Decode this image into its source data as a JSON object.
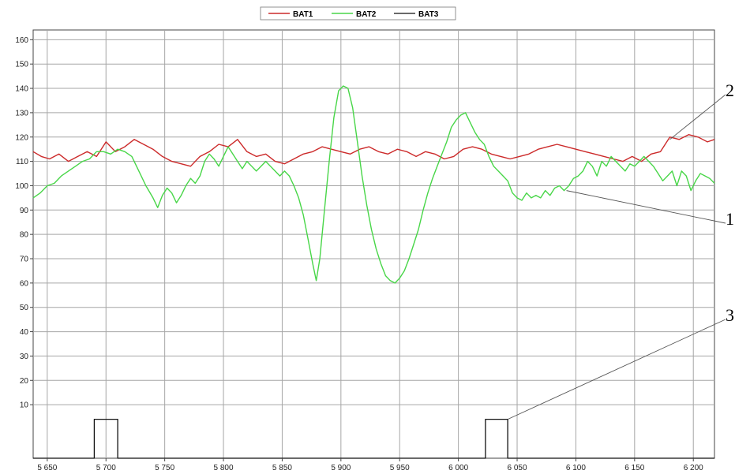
{
  "chart_data": {
    "type": "line",
    "title": "",
    "xlabel": "",
    "ylabel": "",
    "xlim": [
      5638,
      6218
    ],
    "ylim": [
      -12,
      164
    ],
    "grid": true,
    "legend": "top-center",
    "x_ticks": [
      5650,
      5700,
      5750,
      5800,
      5850,
      5900,
      5950,
      6000,
      6050,
      6100,
      6150,
      6200
    ],
    "x_tick_labels": [
      "5 650",
      "5 700",
      "5 750",
      "5 800",
      "5 850",
      "5 900",
      "5 950",
      "6 000",
      "6 050",
      "6 100",
      "6 150",
      "6 200"
    ],
    "y_ticks": [
      10,
      20,
      30,
      40,
      50,
      60,
      70,
      80,
      90,
      100,
      110,
      120,
      130,
      140,
      150,
      160
    ],
    "y_tick_labels": [
      "10",
      "20",
      "30",
      "40",
      "50",
      "60",
      "70",
      "80",
      "90",
      "100",
      "110",
      "120",
      "130",
      "140",
      "150",
      "160"
    ],
    "series": [
      {
        "name": "BAT1",
        "color": "#cc2a2a",
        "points": [
          [
            5638,
            114
          ],
          [
            5645,
            112
          ],
          [
            5652,
            111
          ],
          [
            5660,
            113
          ],
          [
            5668,
            110
          ],
          [
            5676,
            112
          ],
          [
            5684,
            114
          ],
          [
            5692,
            112
          ],
          [
            5700,
            118
          ],
          [
            5708,
            114
          ],
          [
            5716,
            116
          ],
          [
            5724,
            119
          ],
          [
            5732,
            117
          ],
          [
            5740,
            115
          ],
          [
            5748,
            112
          ],
          [
            5756,
            110
          ],
          [
            5764,
            109
          ],
          [
            5772,
            108
          ],
          [
            5780,
            112
          ],
          [
            5788,
            114
          ],
          [
            5796,
            117
          ],
          [
            5804,
            116
          ],
          [
            5812,
            119
          ],
          [
            5820,
            114
          ],
          [
            5828,
            112
          ],
          [
            5836,
            113
          ],
          [
            5844,
            110
          ],
          [
            5852,
            109
          ],
          [
            5860,
            111
          ],
          [
            5868,
            113
          ],
          [
            5876,
            114
          ],
          [
            5884,
            116
          ],
          [
            5892,
            115
          ],
          [
            5900,
            114
          ],
          [
            5908,
            113
          ],
          [
            5916,
            115
          ],
          [
            5924,
            116
          ],
          [
            5932,
            114
          ],
          [
            5940,
            113
          ],
          [
            5948,
            115
          ],
          [
            5956,
            114
          ],
          [
            5964,
            112
          ],
          [
            5972,
            114
          ],
          [
            5980,
            113
          ],
          [
            5988,
            111
          ],
          [
            5996,
            112
          ],
          [
            6004,
            115
          ],
          [
            6012,
            116
          ],
          [
            6020,
            115
          ],
          [
            6028,
            113
          ],
          [
            6036,
            112
          ],
          [
            6044,
            111
          ],
          [
            6052,
            112
          ],
          [
            6060,
            113
          ],
          [
            6068,
            115
          ],
          [
            6076,
            116
          ],
          [
            6084,
            117
          ],
          [
            6092,
            116
          ],
          [
            6100,
            115
          ],
          [
            6108,
            114
          ],
          [
            6116,
            113
          ],
          [
            6124,
            112
          ],
          [
            6132,
            111
          ],
          [
            6140,
            110
          ],
          [
            6148,
            112
          ],
          [
            6156,
            110
          ],
          [
            6164,
            113
          ],
          [
            6172,
            114
          ],
          [
            6180,
            120
          ],
          [
            6188,
            119
          ],
          [
            6196,
            121
          ],
          [
            6204,
            120
          ],
          [
            6212,
            118
          ],
          [
            6218,
            119
          ]
        ]
      },
      {
        "name": "BAT2",
        "color": "#48d648",
        "points": [
          [
            5638,
            95
          ],
          [
            5644,
            97
          ],
          [
            5650,
            100
          ],
          [
            5656,
            101
          ],
          [
            5662,
            104
          ],
          [
            5668,
            106
          ],
          [
            5674,
            108
          ],
          [
            5680,
            110
          ],
          [
            5686,
            111
          ],
          [
            5692,
            114
          ],
          [
            5698,
            114
          ],
          [
            5704,
            113
          ],
          [
            5710,
            115
          ],
          [
            5716,
            114
          ],
          [
            5722,
            112
          ],
          [
            5728,
            106
          ],
          [
            5734,
            100
          ],
          [
            5740,
            95
          ],
          [
            5744,
            91
          ],
          [
            5748,
            96
          ],
          [
            5752,
            99
          ],
          [
            5756,
            97
          ],
          [
            5760,
            93
          ],
          [
            5764,
            96
          ],
          [
            5768,
            100
          ],
          [
            5772,
            103
          ],
          [
            5776,
            101
          ],
          [
            5780,
            104
          ],
          [
            5784,
            110
          ],
          [
            5788,
            113
          ],
          [
            5792,
            111
          ],
          [
            5796,
            108
          ],
          [
            5800,
            112
          ],
          [
            5804,
            116
          ],
          [
            5808,
            113
          ],
          [
            5812,
            110
          ],
          [
            5816,
            107
          ],
          [
            5820,
            110
          ],
          [
            5824,
            108
          ],
          [
            5828,
            106
          ],
          [
            5832,
            108
          ],
          [
            5836,
            110
          ],
          [
            5840,
            108
          ],
          [
            5844,
            106
          ],
          [
            5848,
            104
          ],
          [
            5852,
            106
          ],
          [
            5856,
            104
          ],
          [
            5860,
            100
          ],
          [
            5864,
            95
          ],
          [
            5868,
            88
          ],
          [
            5872,
            78
          ],
          [
            5876,
            68
          ],
          [
            5879,
            61
          ],
          [
            5882,
            70
          ],
          [
            5886,
            90
          ],
          [
            5890,
            110
          ],
          [
            5894,
            128
          ],
          [
            5898,
            139
          ],
          [
            5902,
            141
          ],
          [
            5906,
            140
          ],
          [
            5910,
            132
          ],
          [
            5914,
            118
          ],
          [
            5918,
            104
          ],
          [
            5922,
            92
          ],
          [
            5926,
            82
          ],
          [
            5930,
            74
          ],
          [
            5934,
            68
          ],
          [
            5938,
            63
          ],
          [
            5942,
            61
          ],
          [
            5946,
            60
          ],
          [
            5950,
            62
          ],
          [
            5954,
            65
          ],
          [
            5958,
            70
          ],
          [
            5962,
            76
          ],
          [
            5966,
            82
          ],
          [
            5970,
            90
          ],
          [
            5974,
            97
          ],
          [
            5978,
            103
          ],
          [
            5982,
            108
          ],
          [
            5986,
            113
          ],
          [
            5990,
            118
          ],
          [
            5994,
            124
          ],
          [
            5998,
            127
          ],
          [
            6002,
            129
          ],
          [
            6006,
            130
          ],
          [
            6010,
            126
          ],
          [
            6014,
            122
          ],
          [
            6018,
            119
          ],
          [
            6022,
            117
          ],
          [
            6026,
            112
          ],
          [
            6030,
            108
          ],
          [
            6034,
            106
          ],
          [
            6038,
            104
          ],
          [
            6042,
            102
          ],
          [
            6046,
            97
          ],
          [
            6050,
            95
          ],
          [
            6054,
            94
          ],
          [
            6058,
            97
          ],
          [
            6062,
            95
          ],
          [
            6066,
            96
          ],
          [
            6070,
            95
          ],
          [
            6074,
            98
          ],
          [
            6078,
            96
          ],
          [
            6082,
            99
          ],
          [
            6086,
            100
          ],
          [
            6090,
            98
          ],
          [
            6094,
            100
          ],
          [
            6098,
            103
          ],
          [
            6102,
            104
          ],
          [
            6106,
            106
          ],
          [
            6110,
            110
          ],
          [
            6114,
            108
          ],
          [
            6118,
            104
          ],
          [
            6122,
            110
          ],
          [
            6126,
            108
          ],
          [
            6130,
            112
          ],
          [
            6134,
            110
          ],
          [
            6138,
            108
          ],
          [
            6142,
            106
          ],
          [
            6146,
            109
          ],
          [
            6150,
            108
          ],
          [
            6154,
            110
          ],
          [
            6158,
            112
          ],
          [
            6162,
            110
          ],
          [
            6166,
            108
          ],
          [
            6170,
            105
          ],
          [
            6174,
            102
          ],
          [
            6178,
            104
          ],
          [
            6182,
            106
          ],
          [
            6186,
            100
          ],
          [
            6190,
            106
          ],
          [
            6194,
            104
          ],
          [
            6198,
            98
          ],
          [
            6202,
            102
          ],
          [
            6206,
            105
          ],
          [
            6210,
            104
          ],
          [
            6214,
            103
          ],
          [
            6218,
            101
          ]
        ]
      },
      {
        "name": "BAT3",
        "color": "#111111",
        "points": [
          [
            5638,
            -12
          ],
          [
            5690,
            -12
          ],
          [
            5690,
            4
          ],
          [
            5710,
            4
          ],
          [
            5710,
            -12
          ],
          [
            6023,
            -12
          ],
          [
            6023,
            4
          ],
          [
            6042,
            4
          ],
          [
            6042,
            -12
          ],
          [
            6218,
            -12
          ]
        ]
      }
    ],
    "annotations": [
      {
        "label": "2",
        "from": [
          6180,
          119
        ]
      },
      {
        "label": "1",
        "from": [
          6092,
          98
        ]
      },
      {
        "label": "3",
        "from": [
          6042,
          4
        ]
      }
    ]
  }
}
